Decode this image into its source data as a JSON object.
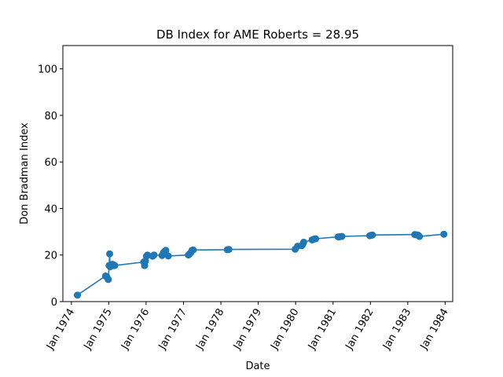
{
  "chart_data": {
    "type": "line",
    "title": "DB Index for AME Roberts = 28.95",
    "xlabel": "Date",
    "ylabel": "Don Bradman Index",
    "ylim": [
      0,
      110
    ],
    "xlim": [
      "1973-10-10",
      "1984-03-15"
    ],
    "yticks": [
      0,
      20,
      40,
      60,
      80,
      100
    ],
    "xticks": [
      {
        "date": "1974-01-01",
        "label": "Jan 1974"
      },
      {
        "date": "1975-01-01",
        "label": "Jan 1975"
      },
      {
        "date": "1976-01-01",
        "label": "Jan 1976"
      },
      {
        "date": "1977-01-01",
        "label": "Jan 1977"
      },
      {
        "date": "1978-01-01",
        "label": "Jan 1978"
      },
      {
        "date": "1979-01-01",
        "label": "Jan 1979"
      },
      {
        "date": "1980-01-01",
        "label": "Jan 1980"
      },
      {
        "date": "1981-01-01",
        "label": "Jan 1981"
      },
      {
        "date": "1982-01-01",
        "label": "Jan 1982"
      },
      {
        "date": "1983-01-01",
        "label": "Jan 1983"
      },
      {
        "date": "1984-01-01",
        "label": "Jan 1984"
      }
    ],
    "grid": false,
    "series": [
      {
        "color": "#1f77b4",
        "x": [
          "1974-03-01",
          "1974-12-01",
          "1974-12-15",
          "1974-12-28",
          "1975-01-05",
          "1975-01-10",
          "1975-01-15",
          "1975-01-22",
          "1975-02-01",
          "1975-02-08",
          "1975-02-15",
          "1975-03-01",
          "1975-12-10",
          "1975-12-18",
          "1975-12-26",
          "1976-01-05",
          "1976-01-14",
          "1976-03-05",
          "1976-03-18",
          "1976-06-05",
          "1976-06-18",
          "1976-07-01",
          "1976-07-12",
          "1976-08-05",
          "1977-02-18",
          "1977-03-01",
          "1977-03-12",
          "1977-03-25",
          "1977-04-05",
          "1978-03-05",
          "1978-03-20",
          "1979-12-28",
          "1980-01-20",
          "1980-03-01",
          "1980-03-10",
          "1980-03-20",
          "1980-06-10",
          "1980-06-25",
          "1980-07-15",
          "1981-02-20",
          "1981-03-10",
          "1981-03-28",
          "1981-12-26",
          "1982-01-08",
          "1982-01-20",
          "1983-03-10",
          "1983-03-25",
          "1983-04-10",
          "1983-04-25",
          "1983-12-20"
        ],
        "values": [
          2.8,
          11.0,
          10.5,
          9.5,
          15.5,
          20.5,
          15.0,
          15.5,
          16.0,
          16.0,
          15.5,
          15.5,
          17.0,
          15.5,
          17.5,
          19.5,
          20.0,
          19.5,
          20.0,
          19.8,
          21.0,
          21.5,
          22.0,
          19.6,
          20.0,
          20.5,
          21.0,
          22.0,
          22.2,
          22.3,
          22.4,
          22.5,
          23.8,
          24.0,
          24.5,
          25.5,
          26.5,
          26.8,
          27.0,
          27.8,
          27.9,
          28.0,
          28.3,
          28.5,
          28.6,
          28.8,
          28.7,
          28.6,
          28.0,
          28.95
        ]
      }
    ]
  }
}
